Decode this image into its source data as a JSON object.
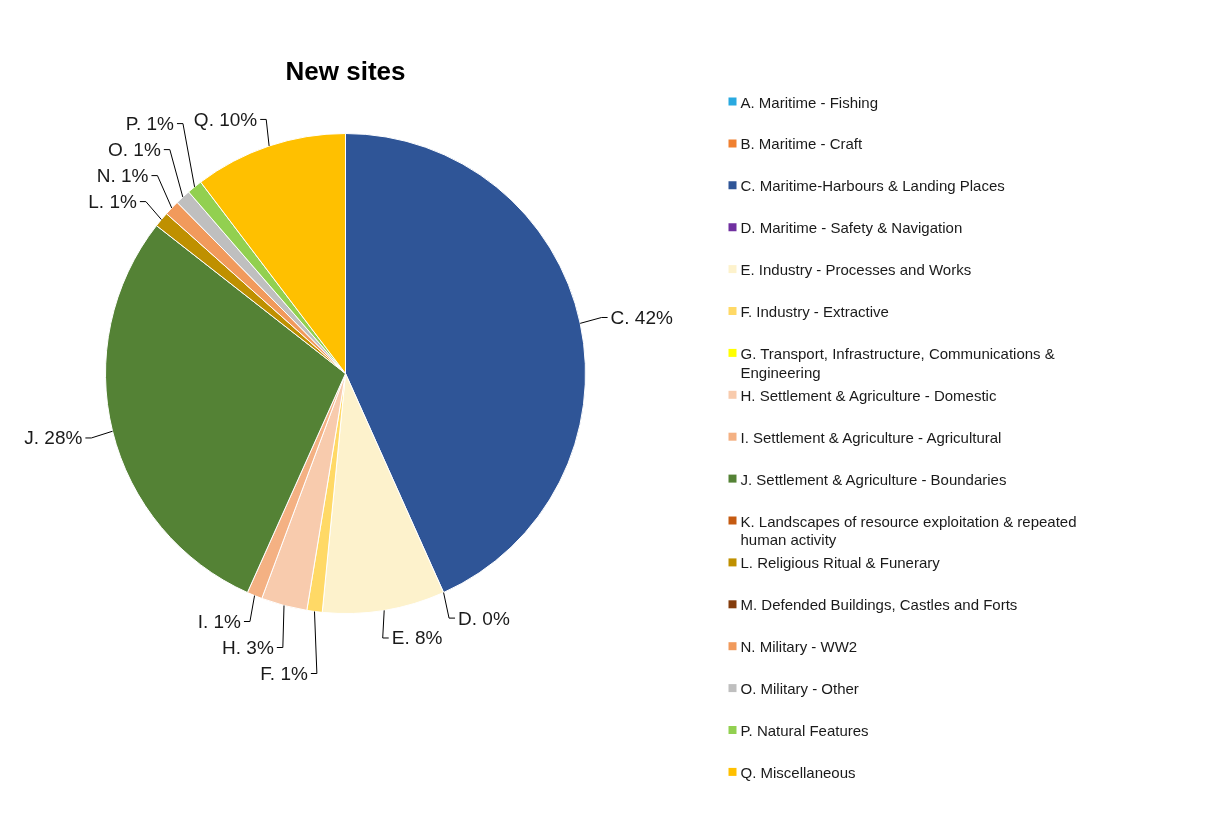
{
  "chart_data": {
    "type": "pie",
    "title": "New sites",
    "categories": [
      "A. Maritime - Fishing",
      "B. Maritime - Craft",
      "C. Maritime-Harbours & Landing Places",
      "D. Maritime - Safety & Navigation",
      "E. Industry - Processes and Works",
      "F. Industry - Extractive",
      "G. Transport, Infrastructure, Communications & Engineering",
      "H. Settlement & Agriculture - Domestic",
      "I. Settlement & Agriculture - Agricultural",
      "J. Settlement & Agriculture - Boundaries",
      "K. Landscapes of resource exploitation & repeated human activity",
      "L. Religious Ritual & Funerary",
      "M. Defended Buildings, Castles and Forts",
      "N. Military - WW2",
      "O. Military - Other",
      "P. Natural Features",
      "Q. Miscellaneous"
    ],
    "values": [
      0,
      0,
      42,
      0,
      8,
      1,
      0,
      3,
      1,
      28,
      0,
      1,
      0,
      1,
      1,
      1,
      10
    ],
    "value_labels": [
      null,
      null,
      "C. 42%",
      "D. 0%",
      "E. 8%",
      "F. 1%",
      null,
      "H. 3%",
      "I. 1%",
      "J. 28%",
      null,
      "L. 1%",
      null,
      "N. 1%",
      "O. 1%",
      "P. 1%",
      "Q. 10%"
    ],
    "colors": [
      "#29a9e0",
      "#f08030",
      "#2f5597",
      "#7030a0",
      "#fdf2cc",
      "#ffd966",
      "#ffff00",
      "#f8cbad",
      "#f4b183",
      "#548235",
      "#c55a11",
      "#bf9000",
      "#843c0c",
      "#f19a5c",
      "#bfbfbf",
      "#92d050",
      "#ffc000"
    ],
    "legend": "right"
  }
}
